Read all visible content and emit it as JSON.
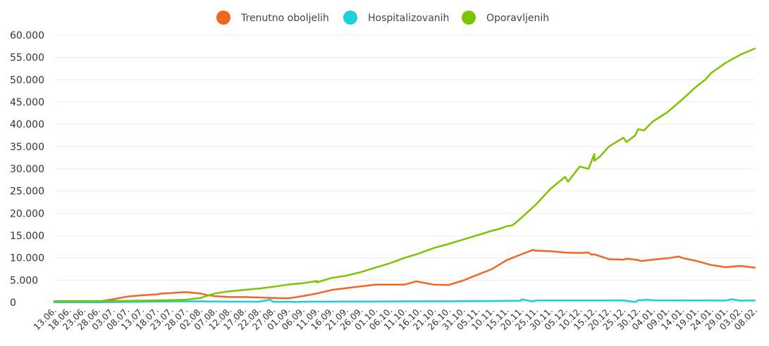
{
  "chart_data": {
    "type": "line",
    "legend_position": "top-center",
    "grid": true,
    "ylim": [
      0,
      60000
    ],
    "yticks": [
      "0",
      "5.000",
      "10.000",
      "15.000",
      "20.000",
      "25.000",
      "30.000",
      "35.000",
      "40.000",
      "45.000",
      "50.000",
      "55.000",
      "60.000"
    ],
    "x_dates": [
      "2020-06-13",
      "2020-06-18",
      "2020-06-23",
      "2020-06-28",
      "2020-07-03",
      "2020-07-08",
      "2020-07-13",
      "2020-07-18",
      "2020-07-23",
      "2020-07-28",
      "2020-08-02",
      "2020-08-07",
      "2020-08-12",
      "2020-08-17",
      "2020-08-22",
      "2020-08-27",
      "2020-09-01",
      "2020-09-06",
      "2020-09-11",
      "2020-09-16",
      "2020-09-21",
      "2020-09-26",
      "2020-10-01",
      "2020-10-06",
      "2020-10-11",
      "2020-10-16",
      "2020-10-21",
      "2020-10-26",
      "2020-10-31",
      "2020-11-05",
      "2020-11-10",
      "2020-11-15",
      "2020-11-20",
      "2020-11-25",
      "2020-11-30",
      "2020-12-05",
      "2020-12-10",
      "2020-12-15",
      "2020-12-20",
      "2020-12-25",
      "2020-12-30",
      "2021-01-04",
      "2021-01-09",
      "2021-01-14",
      "2021-01-19",
      "2021-01-24",
      "2021-01-29",
      "2021-02-03",
      "2021-02-08"
    ],
    "x_labels": [
      "13.06.",
      "18.06.",
      "23.06.",
      "28.06.",
      "03.07.",
      "08.07.",
      "13.07.",
      "18.07.",
      "23.07.",
      "28.07.",
      "02.08.",
      "07.08.",
      "12.08.",
      "17.08.",
      "22.08.",
      "27.08.",
      "01.09.",
      "06.09.",
      "11.09.",
      "16.09.",
      "21.09.",
      "26.09.",
      "01.10.",
      "06.10.",
      "11.10.",
      "16.10.",
      "21.10.",
      "26.10.",
      "31.10.",
      "05.11.",
      "10.11.",
      "15.11.",
      "20.11.",
      "25.11.",
      "30.11.",
      "05.12.",
      "10.12.",
      "15.12.",
      "20.12.",
      "25.12.",
      "30.12.",
      "04.01.",
      "09.01.",
      "14.01.",
      "19.01.",
      "24.01.",
      "29.01.",
      "03.02.",
      "08.02."
    ],
    "series": [
      {
        "name": "Trenutno oboljelih",
        "color": "#f26522",
        "values": [
          100,
          120,
          150,
          200,
          700,
          1300,
          1600,
          1800,
          2100,
          2300,
          2000,
          1400,
          1200,
          1200,
          1100,
          1000,
          900,
          1400,
          2000,
          2800,
          3200,
          3600,
          4000,
          4000,
          4000,
          4600,
          4000,
          3900,
          4900,
          6200,
          7500,
          9500,
          10800,
          11600,
          11500,
          11200,
          11100,
          10800,
          9700,
          9600,
          9500,
          9600,
          9900,
          10000,
          9300,
          8400,
          7900,
          8200,
          7800
        ],
        "points": [
          {
            "x": "2020-07-20",
            "y": 2000
          },
          {
            "x": "2020-07-25",
            "y": 2200
          },
          {
            "x": "2020-07-30",
            "y": 2200
          },
          {
            "x": "2020-08-04",
            "y": 1700
          },
          {
            "x": "2020-10-15",
            "y": 4700
          },
          {
            "x": "2020-11-24",
            "y": 11800
          },
          {
            "x": "2020-12-13",
            "y": 11200
          },
          {
            "x": "2020-12-14",
            "y": 10700
          },
          {
            "x": "2020-12-26",
            "y": 9800
          },
          {
            "x": "2020-12-31",
            "y": 9300
          },
          {
            "x": "2021-01-13",
            "y": 10300
          }
        ]
      },
      {
        "name": "Hospitalizovanih",
        "color": "#1ccfd9",
        "values": [
          40,
          40,
          40,
          40,
          60,
          100,
          150,
          200,
          220,
          240,
          230,
          200,
          180,
          170,
          160,
          150,
          160,
          160,
          170,
          180,
          190,
          200,
          210,
          220,
          230,
          240,
          250,
          260,
          280,
          300,
          320,
          350,
          400,
          420,
          430,
          440,
          440,
          440,
          440,
          450,
          450,
          450,
          450,
          440,
          430,
          420,
          410,
          400,
          420
        ],
        "points": [
          {
            "x": "2020-08-26",
            "y": 600
          },
          {
            "x": "2020-09-05",
            "y": 100
          },
          {
            "x": "2020-11-20",
            "y": 700
          },
          {
            "x": "2020-11-24",
            "y": 200
          },
          {
            "x": "2020-12-29",
            "y": 100
          },
          {
            "x": "2021-01-02",
            "y": 600
          },
          {
            "x": "2021-01-31",
            "y": 700
          }
        ]
      },
      {
        "name": "Oporavljenih",
        "color": "#7cc400",
        "values": [
          300,
          300,
          300,
          310,
          330,
          350,
          400,
          450,
          500,
          600,
          1000,
          2000,
          2500,
          2800,
          3100,
          3500,
          4000,
          4300,
          4800,
          5500,
          6000,
          6800,
          7800,
          8800,
          10000,
          11000,
          12200,
          13100,
          14100,
          15100,
          16100,
          17100,
          19000,
          22000,
          25500,
          28200,
          30500,
          33300,
          35000,
          37000,
          38900,
          40600,
          42700,
          45500,
          48500,
          51500,
          53800,
          55600,
          57000
        ],
        "points": [
          {
            "x": "2020-09-01",
            "y": 4000
          },
          {
            "x": "2020-09-11",
            "y": 4500
          },
          {
            "x": "2020-11-12",
            "y": 16400
          },
          {
            "x": "2020-11-17",
            "y": 17300
          },
          {
            "x": "2020-12-06",
            "y": 27100
          },
          {
            "x": "2020-12-13",
            "y": 30000
          },
          {
            "x": "2020-12-15",
            "y": 31800
          },
          {
            "x": "2020-12-17",
            "y": 32800
          },
          {
            "x": "2020-12-26",
            "y": 36000
          },
          {
            "x": "2020-12-29",
            "y": 37500
          },
          {
            "x": "2021-01-01",
            "y": 38600
          },
          {
            "x": "2021-01-22",
            "y": 50000
          }
        ]
      }
    ]
  }
}
